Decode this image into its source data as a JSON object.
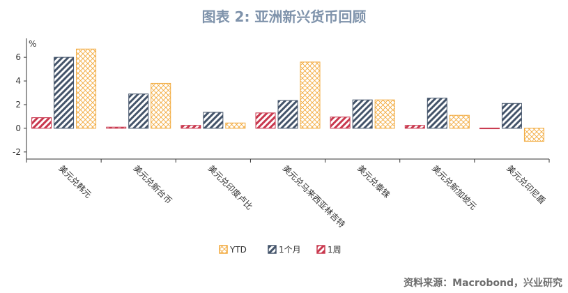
{
  "title": "图表 2: 亚洲新兴货币回顾",
  "source": "资料来源：Macrobond，兴业研究",
  "colors": {
    "ytd": "#f2a93b",
    "m1": "#44546a",
    "w1": "#c9384e"
  },
  "chart_data": {
    "type": "bar",
    "ylabel": "%",
    "ylim": [
      -2.6,
      7.6
    ],
    "yticks": [
      -2,
      0,
      2,
      4,
      6
    ],
    "categories": [
      "美元兑韩元",
      "美元兑新台币",
      "美元兑印度卢比",
      "美元兑马来西亚林吉特",
      "美元兑泰铢",
      "美元兑新加坡元",
      "美元兑印尼盾"
    ],
    "series": [
      {
        "name": "1周",
        "key": "w1",
        "values": [
          0.9,
          0.1,
          0.25,
          1.3,
          0.95,
          0.25,
          0.02
        ]
      },
      {
        "name": "1个月",
        "key": "m1",
        "values": [
          6.0,
          2.9,
          1.35,
          2.35,
          2.4,
          2.55,
          2.1
        ]
      },
      {
        "name": "YTD",
        "key": "ytd",
        "values": [
          6.7,
          3.8,
          0.45,
          5.6,
          2.4,
          1.1,
          -1.1
        ]
      }
    ],
    "legend_order": [
      "YTD",
      "1个月",
      "1周"
    ]
  }
}
